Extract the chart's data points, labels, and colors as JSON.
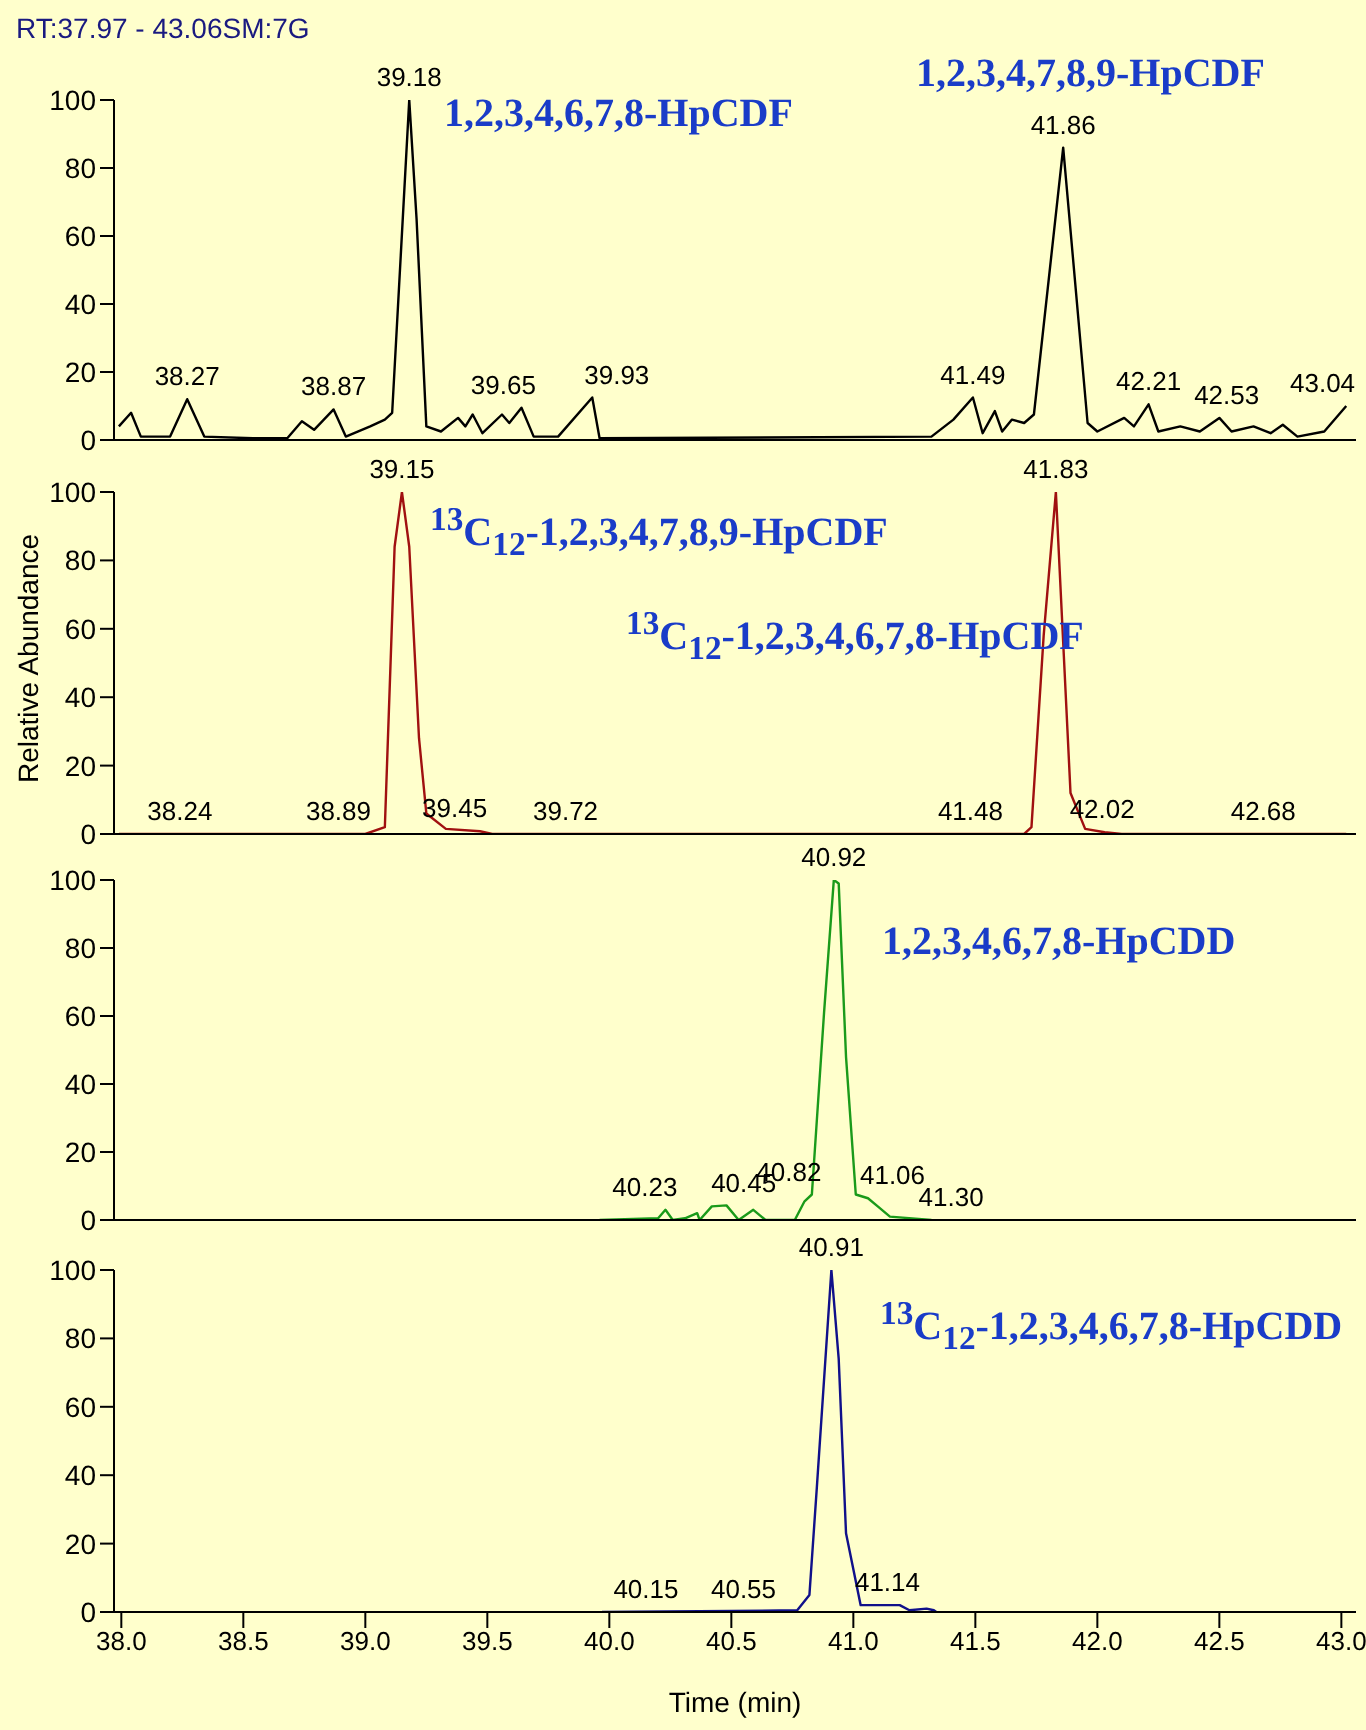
{
  "chart_data": [
    {
      "type": "line",
      "title": "RT:37.97 - 43.06SM:7G",
      "xlim": [
        37.97,
        43.06
      ],
      "ylim": [
        0,
        100
      ],
      "yticks": [
        0,
        20,
        40,
        60,
        80,
        100
      ],
      "tick_labels": "y",
      "grid": false,
      "series": [
        {
          "color": "#000000",
          "x": [
            37.99,
            38.04,
            38.08,
            38.2,
            38.27,
            38.34,
            38.54,
            38.68,
            38.74,
            38.79,
            38.87,
            38.92,
            39.02,
            39.08,
            39.11,
            39.18,
            39.21,
            39.25,
            39.31,
            39.38,
            39.41,
            39.44,
            39.48,
            39.56,
            39.59,
            39.64,
            39.69,
            39.79,
            39.93,
            39.96,
            41.32,
            41.41,
            41.49,
            41.53,
            41.58,
            41.61,
            41.65,
            41.7,
            41.74,
            41.86,
            41.96,
            42.0,
            42.11,
            42.15,
            42.21,
            42.25,
            42.34,
            42.42,
            42.5,
            42.55,
            42.64,
            42.71,
            42.76,
            42.82,
            42.93,
            43.02
          ],
          "values": [
            4,
            8,
            1,
            1,
            12,
            1,
            0.5,
            0.5,
            5.5,
            3,
            9,
            1,
            4,
            6,
            8,
            100,
            65,
            4,
            2.5,
            6.5,
            4,
            7.5,
            2,
            7.5,
            5,
            9.5,
            1,
            1,
            12.5,
            0.5,
            1,
            6,
            12.5,
            2,
            8.5,
            2.5,
            6,
            5,
            7.5,
            86,
            5,
            2.5,
            6.5,
            4,
            10.5,
            2.5,
            4,
            2.5,
            6.5,
            2.5,
            4,
            2,
            4.5,
            1,
            2.5,
            10
          ]
        }
      ],
      "annotations": [
        "1,2,3,4,6,7,8-HpCDF",
        "1,2,3,4,7,8,9-HpCDF",
        {
          "text": "38.27",
          "x": 38.27,
          "y": 12
        },
        {
          "text": "38.87",
          "x": 38.87,
          "y": 9
        },
        {
          "text": "39.18",
          "x": 39.18,
          "y": 100
        },
        {
          "text": "39.65",
          "x": 39.65,
          "y": 9.5
        },
        {
          "text": "39.93",
          "x": 39.93,
          "y": 12.5
        },
        {
          "text": "41.49",
          "x": 41.49,
          "y": 12.5
        },
        {
          "text": "41.86",
          "x": 41.86,
          "y": 86
        },
        {
          "text": "42.21",
          "x": 42.21,
          "y": 10.5
        },
        {
          "text": "42.53",
          "x": 42.53,
          "y": 6.5
        },
        {
          "text": "43.04",
          "x": 43.04,
          "y": 10
        }
      ]
    },
    {
      "type": "line",
      "ylabel": "Relative Abundance",
      "xlim": [
        37.97,
        43.06
      ],
      "ylim": [
        0,
        100
      ],
      "yticks": [
        0,
        20,
        40,
        60,
        80,
        100
      ],
      "tick_labels": "y",
      "grid": false,
      "series": [
        {
          "color": "#a01010",
          "x": [
            37.99,
            39.0,
            39.08,
            39.12,
            39.15,
            39.18,
            39.22,
            39.25,
            39.33,
            39.47,
            39.52,
            41.7,
            41.73,
            41.78,
            41.83,
            41.86,
            41.89,
            41.95,
            42.03,
            42.1,
            43.02
          ],
          "values": [
            0,
            0,
            2,
            84,
            100,
            84,
            28,
            6,
            1.5,
            0.8,
            0,
            0,
            2,
            58,
            100,
            56,
            12,
            1.5,
            0.5,
            0,
            0
          ]
        }
      ],
      "annotations": [
        "$^{13}$C$_{12}$-1,2,3,4,7,8,9-HpCDF",
        "$^{13}$C$_{12}$-1,2,3,4,6,7,8-HpCDF",
        {
          "text": "38.24",
          "x": 38.24,
          "y": 0
        },
        {
          "text": "38.89",
          "x": 38.89,
          "y": 0
        },
        {
          "text": "39.15",
          "x": 39.15,
          "y": 100
        },
        {
          "text": "39.45",
          "x": 39.45,
          "y": 0.8
        },
        {
          "text": "39.72",
          "x": 39.72,
          "y": 0
        },
        {
          "text": "41.48",
          "x": 41.48,
          "y": 0
        },
        {
          "text": "41.83",
          "x": 41.83,
          "y": 100
        },
        {
          "text": "42.02",
          "x": 42.02,
          "y": 0.5
        },
        {
          "text": "42.68",
          "x": 42.68,
          "y": 0
        }
      ]
    },
    {
      "type": "line",
      "xlim": [
        37.97,
        43.06
      ],
      "ylim": [
        0,
        100
      ],
      "yticks": [
        0,
        20,
        40,
        60,
        80,
        100
      ],
      "tick_labels": "y",
      "grid": false,
      "series": [
        {
          "color": "#1a9a1a",
          "x": [
            39.96,
            40.2,
            40.23,
            40.26,
            40.31,
            40.36,
            40.37,
            40.42,
            40.48,
            40.53,
            40.59,
            40.64,
            40.76,
            40.8,
            40.83,
            40.88,
            40.92,
            40.94,
            40.97,
            41.01,
            41.06,
            41.1,
            41.15,
            41.32
          ],
          "values": [
            0,
            0.5,
            3,
            0,
            0.5,
            2,
            0,
            4,
            4.3,
            0,
            3,
            0,
            0,
            5.5,
            7.5,
            61,
            100,
            99,
            48,
            7.5,
            6.4,
            4,
            1,
            0
          ]
        }
      ],
      "annotations": [
        "1,2,3,4,6,7,8-HpCDD",
        {
          "text": "40.23",
          "x": 40.23,
          "y": 3
        },
        {
          "text": "40.45",
          "x": 40.45,
          "y": 4
        },
        {
          "text": "40.82",
          "x": 40.82,
          "y": 7.5
        },
        {
          "text": "40.92",
          "x": 40.92,
          "y": 100
        },
        {
          "text": "41.06",
          "x": 41.06,
          "y": 6.4
        },
        {
          "text": "41.30",
          "x": 41.3,
          "y": 0
        }
      ]
    },
    {
      "type": "line",
      "xlabel": "Time (min)",
      "xlim": [
        37.97,
        43.06
      ],
      "ylim": [
        0,
        100
      ],
      "yticks": [
        0,
        20,
        40,
        60,
        80,
        100
      ],
      "grid": false,
      "xticks": [
        {
          "value": 38,
          "label": "38.0"
        },
        {
          "value": 38.5,
          "label": "38.5"
        },
        {
          "value": 39,
          "label": "39.0"
        },
        {
          "value": 39.5,
          "label": "39.5"
        },
        {
          "value": 40,
          "label": "40.0"
        },
        {
          "value": 40.5,
          "label": "40.5"
        },
        {
          "value": 41,
          "label": "41.0"
        },
        {
          "value": 41.5,
          "label": "41.5"
        },
        {
          "value": 42,
          "label": "42.0"
        },
        {
          "value": 42.5,
          "label": "42.5"
        },
        {
          "value": 43,
          "label": "43.0"
        }
      ],
      "series": [
        {
          "color": "#10108a",
          "x": [
            39.97,
            40.77,
            40.82,
            40.85,
            40.91,
            40.94,
            40.97,
            41.03,
            41.19,
            41.23,
            41.3,
            41.33,
            41.34
          ],
          "values": [
            0,
            0.5,
            5,
            36,
            100,
            74,
            23,
            2,
            2,
            0.5,
            1,
            0.5,
            0
          ]
        }
      ],
      "annotations": [
        "$^{13}$C$_{12}$-1,2,3,4,6,7,8-HpCDD",
        {
          "text": "40.15",
          "x": 40.15,
          "y": 0
        },
        {
          "text": "40.55",
          "x": 40.55,
          "y": 0
        },
        {
          "text": "40.91",
          "x": 40.91,
          "y": 100
        },
        {
          "text": "41.14",
          "x": 41.14,
          "y": 2
        }
      ]
    }
  ]
}
